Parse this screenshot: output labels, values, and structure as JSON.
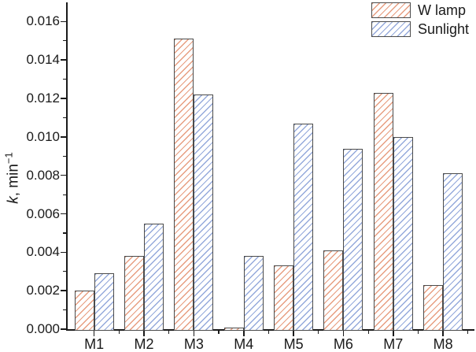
{
  "chart_data": {
    "type": "bar",
    "title": "",
    "xlabel": "",
    "ylabel": "k, min^-1",
    "ylabel_parts": {
      "var": "k",
      "rest": ", min",
      "sup": "−1"
    },
    "categories": [
      "M1",
      "M2",
      "M3",
      "M4",
      "M5",
      "M6",
      "M7",
      "M8"
    ],
    "series": [
      {
        "name": "W lamp",
        "values": [
          0.002,
          0.0038,
          0.0151,
          0.0001,
          0.0033,
          0.0041,
          0.0123,
          0.0023
        ]
      },
      {
        "name": "Sunlight",
        "values": [
          0.0029,
          0.0055,
          0.0122,
          0.0038,
          0.0107,
          0.0094,
          0.01,
          0.0081
        ]
      }
    ],
    "ylim": [
      0,
      0.017
    ],
    "y_ticks": [
      0.0,
      0.002,
      0.004,
      0.006,
      0.008,
      0.01,
      0.012,
      0.014,
      0.016
    ],
    "y_tick_labels": [
      "0.000",
      "0.002",
      "0.004",
      "0.006",
      "0.008",
      "0.010",
      "0.012",
      "0.014",
      "0.016"
    ],
    "y_minor_step": 0.001,
    "grid": false,
    "legend_position": "top-right"
  },
  "colors": {
    "wlamp_hatch": "#e79d80",
    "sunlight_hatch": "#94a9db",
    "bar_border": "#4b4b4b",
    "axis": "#1a1a1a",
    "background": "#ffffff"
  }
}
